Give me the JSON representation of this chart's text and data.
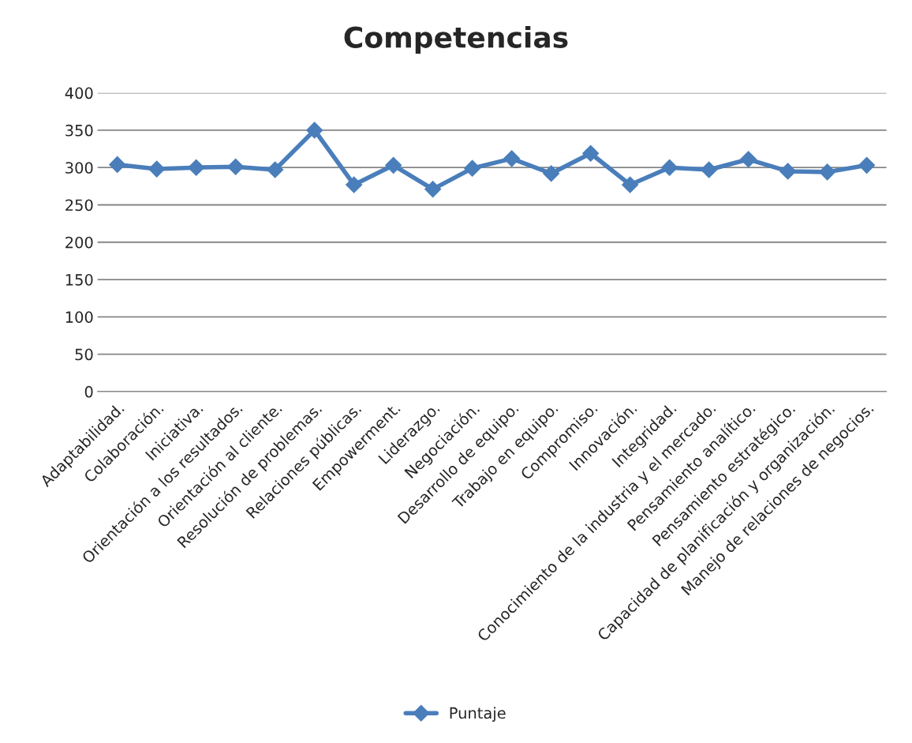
{
  "chart_data": {
    "type": "line",
    "title": "Competencias",
    "categories": [
      "Adaptabilidad.",
      "Colaboración.",
      "Iniciativa.",
      "Orientación a los resultados.",
      "Orientación al cliente.",
      "Resolución de problemas.",
      "Relaciones públicas.",
      "Empowerment.",
      "Liderazgo.",
      "Negociación.",
      "Desarrollo de equipo.",
      "Trabajo en equipo.",
      "Compromiso.",
      "Innovación.",
      "Integridad.",
      "Conocimiento de la industria y el mercado.",
      "Pensamiento analítico.",
      "Pensamiento estratégico.",
      "Capacidad de planificación y organización.",
      "Manejo de relaciones de negocios."
    ],
    "series": [
      {
        "name": "Puntaje",
        "color": "#4a7ebb",
        "values": [
          304,
          298,
          300,
          301,
          297,
          350,
          277,
          303,
          271,
          299,
          312,
          292,
          319,
          277,
          300,
          297,
          311,
          295,
          294,
          303
        ]
      }
    ],
    "ylim": [
      0,
      400
    ],
    "yticks": [
      0,
      50,
      100,
      150,
      200,
      250,
      300,
      350,
      400
    ],
    "grid": "y",
    "legend": "bottom",
    "marker": "diamond",
    "line_style": "solid"
  }
}
